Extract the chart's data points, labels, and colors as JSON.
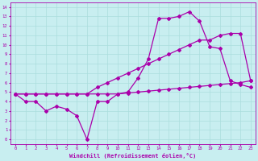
{
  "background_color": "#c8eef0",
  "grid_color": "#aadddd",
  "line_color": "#aa00aa",
  "marker": "D",
  "markersize": 2,
  "linewidth": 0.9,
  "xlabel": "Windchill (Refroidissement éolien,°C)",
  "xlim": [
    -0.5,
    23.5
  ],
  "ylim": [
    -0.5,
    14.5
  ],
  "xticks": [
    0,
    1,
    2,
    3,
    4,
    5,
    6,
    7,
    8,
    9,
    10,
    11,
    12,
    13,
    14,
    15,
    16,
    17,
    18,
    19,
    20,
    21,
    22,
    23
  ],
  "yticks": [
    0,
    1,
    2,
    3,
    4,
    5,
    6,
    7,
    8,
    9,
    10,
    11,
    12,
    13,
    14
  ],
  "line1_x": [
    0,
    1,
    2,
    3,
    4,
    5,
    6,
    7,
    8,
    9,
    10,
    11,
    12,
    13,
    14,
    15,
    16,
    17,
    18,
    19,
    20,
    21,
    22,
    23
  ],
  "line1_y": [
    4.8,
    4.0,
    4.0,
    3.0,
    3.5,
    3.2,
    2.5,
    0.0,
    4.0,
    4.0,
    4.8,
    5.0,
    6.5,
    8.5,
    12.8,
    12.8,
    13.0,
    13.5,
    12.5,
    9.8,
    9.6,
    6.2,
    5.8,
    5.5
  ],
  "line2_x": [
    0,
    1,
    2,
    3,
    4,
    5,
    6,
    7,
    8,
    9,
    10,
    11,
    12,
    13,
    14,
    15,
    16,
    17,
    18,
    19,
    20,
    21,
    22,
    23
  ],
  "line2_y": [
    4.8,
    4.8,
    4.8,
    4.8,
    4.8,
    4.8,
    4.8,
    4.8,
    5.5,
    6.0,
    6.5,
    7.0,
    7.5,
    8.0,
    8.5,
    9.0,
    9.5,
    10.0,
    10.5,
    10.5,
    11.0,
    11.2,
    11.2,
    6.2
  ],
  "line3_x": [
    0,
    1,
    2,
    3,
    4,
    5,
    6,
    7,
    8,
    9,
    10,
    11,
    12,
    13,
    14,
    15,
    16,
    17,
    18,
    19,
    20,
    21,
    22,
    23
  ],
  "line3_y": [
    4.8,
    4.8,
    4.8,
    4.8,
    4.8,
    4.8,
    4.8,
    4.8,
    4.8,
    4.8,
    4.8,
    4.9,
    5.0,
    5.1,
    5.2,
    5.3,
    5.4,
    5.5,
    5.6,
    5.7,
    5.8,
    5.9,
    6.0,
    6.2
  ]
}
